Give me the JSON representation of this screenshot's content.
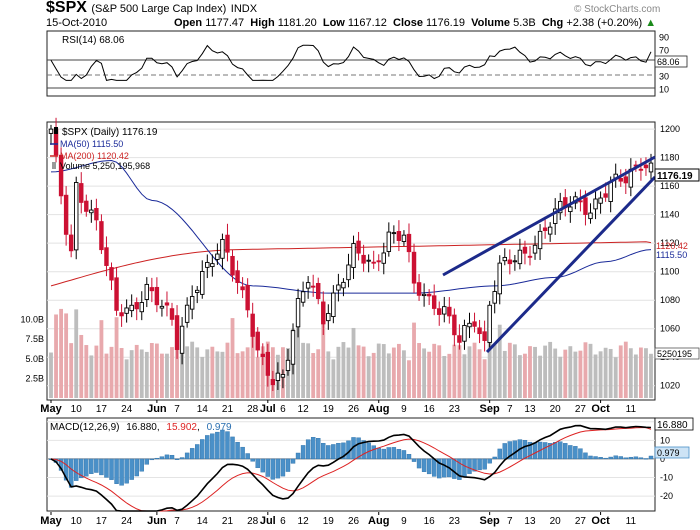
{
  "header": {
    "symbol": "$SPX",
    "name": "(S&P 500 Large Cap Index)",
    "exchange": "INDX",
    "date": "15-Oct-2010",
    "open_label": "Open",
    "open": "1177.47",
    "high_label": "High",
    "high": "1181.20",
    "low_label": "Low",
    "low": "1167.12",
    "close_label": "Close",
    "close": "1176.19",
    "volume_label": "Volume",
    "volume": "5.3B",
    "chg_label": "Chg",
    "chg": "+2.38 (+0.20%)",
    "watermark": "© StockCharts.com"
  },
  "rsi_panel": {
    "legend": "RSI(14) 68.06",
    "ticks": [
      "90",
      "70",
      "50",
      "30",
      "10"
    ],
    "current_label": "68.06",
    "levels": {
      "overbought": 70,
      "oversold": 30,
      "center": 50
    }
  },
  "price_panel": {
    "legend": {
      "symbol": "$SPX (Daily) 1176.19",
      "ma50": "MA(50) 1115.50",
      "ma200": "MA(200) 1120.42",
      "volume": "Volume 5,250,195,968"
    },
    "price_ticks": [
      "1200",
      "1180",
      "1160",
      "1140",
      "1120",
      "1100",
      "1080",
      "1060",
      "1040",
      "1020"
    ],
    "volume_ticks": [
      "10.0B",
      "7.5B",
      "5.0B",
      "2.5B"
    ],
    "right_labels": {
      "close": "1176.19",
      "ma200": "1120.42",
      "ma50": "1115.50",
      "volume": "5250195"
    },
    "colors": {
      "up": "#000000",
      "down": "#cc1133",
      "ma50": "#1a2a99",
      "ma200": "#cc2222",
      "trend": "#1c2a8a",
      "vol_up": "#bdbdbd",
      "vol_down": "#e8a9ad"
    }
  },
  "macd_panel": {
    "legend_prefix": "MACD(12,26,9)",
    "macd_value": "16.880",
    "signal_value": "15.902",
    "hist_value": "0.979",
    "ticks": [
      "20",
      "10",
      "0",
      "-10",
      "-20"
    ],
    "right_labels": {
      "macd": "16.880",
      "hist": "0.979"
    },
    "colors": {
      "macd": "#000000",
      "signal": "#dd2222",
      "hist": "#4a90c8"
    }
  },
  "x_axis": {
    "labels": [
      "May",
      "10",
      "17",
      "24",
      "Jun",
      "7",
      "14",
      "21",
      "28",
      "Jul",
      "6",
      "12",
      "19",
      "26",
      "Aug",
      "9",
      "16",
      "23",
      "Sep",
      "7",
      "13",
      "20",
      "27",
      "Oct",
      "11"
    ],
    "bold": [
      "May",
      "Jun",
      "Jul",
      "Aug",
      "Sep",
      "Oct"
    ]
  },
  "chart_data": {
    "type": "candlestick",
    "title": "$SPX (S&P 500 Large Cap Index) INDX",
    "date_range": [
      "2010-05-03",
      "2010-10-15"
    ],
    "price_range": [
      1010,
      1205
    ],
    "close_anchors": [
      [
        "May 3",
        1200
      ],
      [
        "May 6",
        1128
      ],
      [
        "May 7",
        1111
      ],
      [
        "May 10",
        1159
      ],
      [
        "May 14",
        1136
      ],
      [
        "May 20",
        1071
      ],
      [
        "May 25",
        1074
      ],
      [
        "May 28",
        1089
      ],
      [
        "Jun 4",
        1065
      ],
      [
        "Jun 7",
        1050
      ],
      [
        "Jun 10",
        1087
      ],
      [
        "Jun 18",
        1117
      ],
      [
        "Jun 21",
        1113
      ],
      [
        "Jun 25",
        1076
      ],
      [
        "Jun 29",
        1041
      ],
      [
        "Jul 2",
        1022
      ],
      [
        "Jul 6",
        1028
      ],
      [
        "Jul 9",
        1078
      ],
      [
        "Jul 13",
        1095
      ],
      [
        "Jul 16",
        1065
      ],
      [
        "Jul 20",
        1083
      ],
      [
        "Jul 26",
        1115
      ],
      [
        "Jul 30",
        1101
      ],
      [
        "Aug 4",
        1127
      ],
      [
        "Aug 9",
        1127
      ],
      [
        "Aug 11",
        1089
      ],
      [
        "Aug 16",
        1079
      ],
      [
        "Aug 19",
        1075
      ],
      [
        "Aug 24",
        1051
      ],
      [
        "Aug 27",
        1065
      ],
      [
        "Aug 31",
        1049
      ],
      [
        "Sep 1",
        1080
      ],
      [
        "Sep 3",
        1105
      ],
      [
        "Sep 10",
        1110
      ],
      [
        "Sep 14",
        1121
      ],
      [
        "Sep 20",
        1142
      ],
      [
        "Sep 24",
        1148
      ],
      [
        "Sep 29",
        1145
      ],
      [
        "Oct 5",
        1160
      ],
      [
        "Oct 8",
        1165
      ],
      [
        "Oct 13",
        1178
      ],
      [
        "Oct 15",
        1176.19
      ]
    ],
    "ma50_last": 1115.5,
    "ma200_last": 1120.42,
    "rsi_last": 68.06,
    "macd_last": 16.88,
    "signal_last": 15.902,
    "histogram_last": 0.979,
    "volume_last": 5250195968
  }
}
